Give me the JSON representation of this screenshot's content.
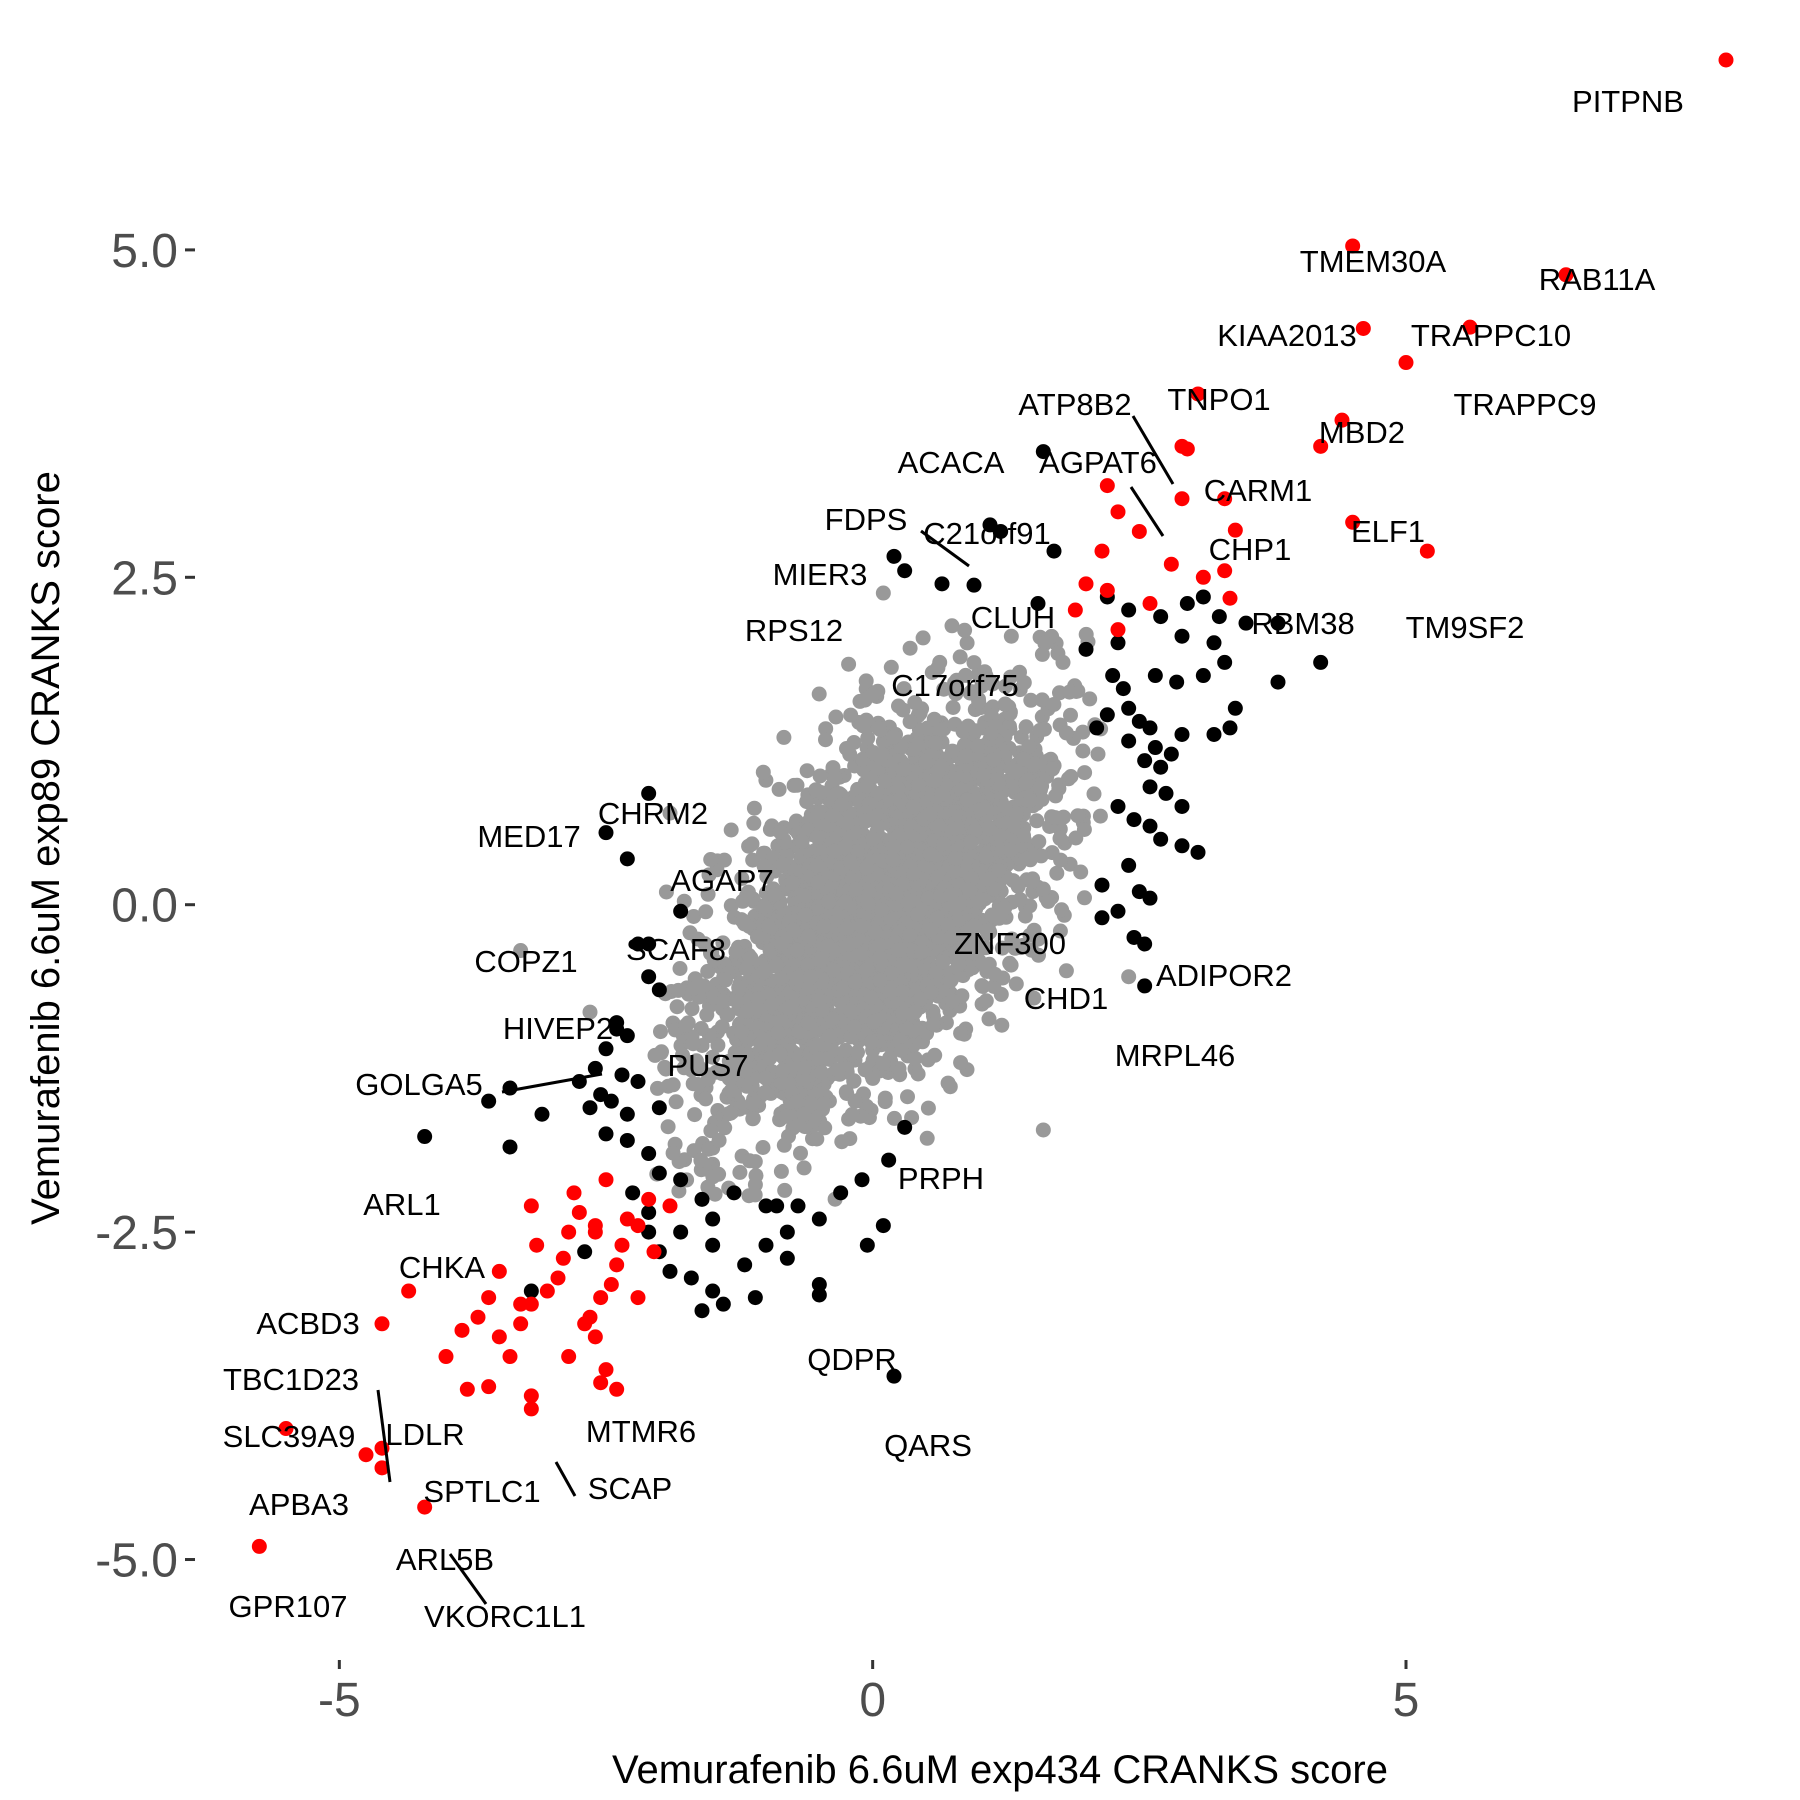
{
  "chart_data": {
    "type": "scatter",
    "title": "",
    "xlabel": "Vemurafenib 6.6uM exp434 CRANKS score",
    "ylabel": "Vemurafenib 6.6uM exp89 CRANKS score",
    "xlim": [
      -6.4,
      8.3
    ],
    "ylim": [
      -5.5,
      6.45
    ],
    "x_ticks": [
      -5,
      0,
      5
    ],
    "x_tick_labels": [
      "-5",
      "0",
      "5"
    ],
    "y_ticks": [
      -5,
      -2.5,
      0,
      2.5,
      5
    ],
    "y_tick_labels": [
      "-5.0",
      "-2.5",
      "0.0",
      "2.5",
      "5.0"
    ],
    "grid": false,
    "legend": "none",
    "colors": {
      "background": "#ffffff",
      "bulk": "#999999",
      "mid": "#000000",
      "highlight": "#ff0000",
      "tick_text": "#4d4d4d",
      "tick_mark": "#333333"
    },
    "bulk_cloud": {
      "center": [
        0.05,
        -0.05
      ],
      "sd_x": 0.82,
      "sd_y": 0.8,
      "rho": 0.58,
      "n": 3200
    },
    "labeled_points": [
      {
        "label": "PITPNB",
        "x": 8.0,
        "y": 6.45,
        "color": "red"
      },
      {
        "label": "TMEM30A",
        "x": 4.5,
        "y": 5.03,
        "color": "red"
      },
      {
        "label": "RAB11A",
        "x": 6.5,
        "y": 4.81,
        "color": "red"
      },
      {
        "label": "KIAA2013",
        "x": 4.6,
        "y": 4.4,
        "color": "red"
      },
      {
        "label": "TRAPPC10",
        "x": 5.6,
        "y": 4.41,
        "color": "red"
      },
      {
        "label": "TRAPPC9",
        "x": 5.0,
        "y": 4.14,
        "color": "red"
      },
      {
        "label": "TNPO1",
        "x": 3.05,
        "y": 3.9,
        "color": "red"
      },
      {
        "label": "MBD2",
        "x": 4.4,
        "y": 3.7,
        "color": "red"
      },
      {
        "label": "ATP8B2",
        "x": 2.95,
        "y": 3.48,
        "color": "red"
      },
      {
        "label": "CARM1",
        "x": 4.2,
        "y": 3.5,
        "color": "red"
      },
      {
        "label": "ACACA",
        "x": 1.6,
        "y": 3.46,
        "color": "black"
      },
      {
        "label": "AGPAT6",
        "x": 2.9,
        "y": 3.1,
        "color": "red"
      },
      {
        "label": "C21orf91",
        "x": 2.2,
        "y": 3.2,
        "color": "red"
      },
      {
        "label": "FDPS",
        "x": 1.1,
        "y": 2.9,
        "color": "black"
      },
      {
        "label": "CHP1",
        "x": 3.4,
        "y": 2.86,
        "color": "red"
      },
      {
        "label": "ELF1",
        "x": 4.5,
        "y": 2.92,
        "color": "red"
      },
      {
        "label": "MIER3",
        "x": 0.2,
        "y": 2.66,
        "color": "black"
      },
      {
        "label": "TM9SF2",
        "x": 5.2,
        "y": 2.7,
        "color": "red"
      },
      {
        "label": "CLUH",
        "x": 0.95,
        "y": 2.44,
        "color": "black"
      },
      {
        "label": "RBM38",
        "x": 3.35,
        "y": 2.34,
        "color": "red"
      },
      {
        "label": "RPS12",
        "x": 0.1,
        "y": 2.38,
        "color": "grey"
      },
      {
        "label": "C17orf75",
        "x": 1.3,
        "y": 2.05,
        "color": "grey"
      },
      {
        "label": "CHRM2",
        "x": -2.1,
        "y": 0.85,
        "color": "black"
      },
      {
        "label": "MED17",
        "x": -2.5,
        "y": 0.55,
        "color": "black"
      },
      {
        "label": "AGAP7",
        "x": -1.9,
        "y": 0.7,
        "color": "grey"
      },
      {
        "label": "ZNF300",
        "x": 2.15,
        "y": 0.15,
        "color": "black"
      },
      {
        "label": "COPZ1",
        "x": -3.3,
        "y": -0.35,
        "color": "grey"
      },
      {
        "label": "SCAF8",
        "x": -2.2,
        "y": -0.3,
        "color": "black"
      },
      {
        "label": "ADIPOR2",
        "x": 2.45,
        "y": -0.25,
        "color": "black"
      },
      {
        "label": "CHD1",
        "x": 2.4,
        "y": -0.55,
        "color": "grey"
      },
      {
        "label": "HIVEP2",
        "x": -2.65,
        "y": -0.82,
        "color": "grey"
      },
      {
        "label": "MRPL46",
        "x": 2.55,
        "y": -0.62,
        "color": "black"
      },
      {
        "label": "GOLGA5",
        "x": -2.4,
        "y": -0.95,
        "color": "black"
      },
      {
        "label": "PUS7",
        "x": -1.75,
        "y": -0.92,
        "color": "grey"
      },
      {
        "label": "PRPH",
        "x": 1.6,
        "y": -1.72,
        "color": "grey"
      },
      {
        "label": "ARL1",
        "x": -4.2,
        "y": -1.77,
        "color": "black"
      },
      {
        "label": "CHKA",
        "x": -2.6,
        "y": -2.5,
        "color": "red"
      },
      {
        "label": "ACBD3",
        "x": -4.35,
        "y": -2.95,
        "color": "red"
      },
      {
        "label": "QDPR",
        "x": -0.5,
        "y": -2.98,
        "color": "black"
      },
      {
        "label": "TBC1D23",
        "x": -4.6,
        "y": -3.2,
        "color": "red"
      },
      {
        "label": "MTMR6",
        "x": -3.2,
        "y": -3.75,
        "color": "red"
      },
      {
        "label": "LDLR",
        "x": -3.6,
        "y": -3.68,
        "color": "red"
      },
      {
        "label": "QARS",
        "x": 0.2,
        "y": -3.6,
        "color": "black"
      },
      {
        "label": "SLC39A9",
        "x": -5.5,
        "y": -4.0,
        "color": "red"
      },
      {
        "label": "APBA3",
        "x": -4.75,
        "y": -4.2,
        "color": "red"
      },
      {
        "label": "SPTLC1",
        "x": -4.6,
        "y": -4.3,
        "color": "red"
      },
      {
        "label": "SCAP",
        "x": -3.2,
        "y": -3.85,
        "color": "red"
      },
      {
        "label": "ARL5B",
        "x": -4.2,
        "y": -4.6,
        "color": "red"
      },
      {
        "label": "VKORC1L1",
        "x": -4.6,
        "y": -4.15,
        "color": "red"
      },
      {
        "label": "GPR107",
        "x": -5.75,
        "y": -4.9,
        "color": "red"
      }
    ],
    "black_points": [
      [
        1.2,
        2.85
      ],
      [
        1.7,
        2.7
      ],
      [
        0.65,
        2.45
      ],
      [
        0.3,
        2.55
      ],
      [
        1.55,
        2.3
      ],
      [
        2.2,
        2.35
      ],
      [
        2.4,
        2.25
      ],
      [
        2.7,
        2.2
      ],
      [
        2.95,
        2.3
      ],
      [
        3.1,
        2.35
      ],
      [
        3.25,
        2.2
      ],
      [
        3.5,
        2.15
      ],
      [
        3.8,
        2.15
      ],
      [
        2.3,
        2.0
      ],
      [
        2.9,
        2.05
      ],
      [
        3.2,
        2.0
      ],
      [
        4.2,
        1.85
      ],
      [
        3.8,
        1.7
      ],
      [
        2.0,
        1.95
      ],
      [
        2.25,
        1.75
      ],
      [
        2.35,
        1.65
      ],
      [
        2.65,
        1.75
      ],
      [
        2.85,
        1.7
      ],
      [
        3.1,
        1.75
      ],
      [
        3.3,
        1.85
      ],
      [
        2.1,
        1.35
      ],
      [
        2.2,
        1.45
      ],
      [
        2.4,
        1.5
      ],
      [
        2.5,
        1.4
      ],
      [
        2.6,
        1.35
      ],
      [
        2.4,
        1.25
      ],
      [
        2.65,
        1.2
      ],
      [
        2.9,
        1.3
      ],
      [
        3.2,
        1.3
      ],
      [
        3.4,
        1.5
      ],
      [
        3.35,
        1.35
      ],
      [
        2.55,
        1.1
      ],
      [
        2.7,
        1.05
      ],
      [
        2.8,
        1.15
      ],
      [
        2.6,
        0.9
      ],
      [
        2.75,
        0.85
      ],
      [
        2.3,
        0.75
      ],
      [
        2.45,
        0.65
      ],
      [
        2.6,
        0.6
      ],
      [
        2.9,
        0.75
      ],
      [
        2.7,
        0.5
      ],
      [
        2.9,
        0.45
      ],
      [
        3.05,
        0.4
      ],
      [
        2.4,
        0.3
      ],
      [
        2.5,
        0.1
      ],
      [
        2.6,
        0.05
      ],
      [
        2.3,
        -0.05
      ],
      [
        2.15,
        -0.1
      ],
      [
        2.55,
        -0.3
      ],
      [
        -2.1,
        -0.3
      ],
      [
        -1.8,
        -0.05
      ],
      [
        -2.3,
        0.35
      ],
      [
        -2.1,
        -0.55
      ],
      [
        -2.0,
        -0.65
      ],
      [
        -2.4,
        -0.9
      ],
      [
        -2.3,
        -1.0
      ],
      [
        -2.5,
        -1.1
      ],
      [
        -2.6,
        -1.25
      ],
      [
        -2.35,
        -1.3
      ],
      [
        -2.2,
        -1.35
      ],
      [
        -2.75,
        -1.35
      ],
      [
        -2.55,
        -1.45
      ],
      [
        -2.45,
        -1.5
      ],
      [
        -2.65,
        -1.55
      ],
      [
        -2.3,
        -1.6
      ],
      [
        -2.0,
        -1.55
      ],
      [
        -3.4,
        -1.4
      ],
      [
        -3.6,
        -1.5
      ],
      [
        -3.1,
        -1.6
      ],
      [
        -2.5,
        -1.75
      ],
      [
        -2.3,
        -1.8
      ],
      [
        -3.4,
        -1.85
      ],
      [
        -2.1,
        -1.9
      ],
      [
        -2.0,
        -2.05
      ],
      [
        -1.8,
        -2.1
      ],
      [
        -1.6,
        -2.25
      ],
      [
        -1.5,
        -2.4
      ],
      [
        -1.8,
        -2.5
      ],
      [
        -2.1,
        -2.5
      ],
      [
        -2.0,
        -2.65
      ],
      [
        -1.9,
        -2.8
      ],
      [
        -1.7,
        -2.85
      ],
      [
        -1.5,
        -2.95
      ],
      [
        -1.6,
        -3.1
      ],
      [
        -1.4,
        -3.05
      ],
      [
        -1.1,
        -3.0
      ],
      [
        -1.0,
        -2.6
      ],
      [
        -0.8,
        -2.5
      ],
      [
        -0.7,
        -2.3
      ],
      [
        -0.5,
        -2.4
      ],
      [
        -0.3,
        -2.2
      ],
      [
        -0.1,
        -2.1
      ],
      [
        0.15,
        -1.95
      ],
      [
        0.3,
        -1.7
      ],
      [
        -0.8,
        -2.7
      ],
      [
        -0.5,
        -2.9
      ],
      [
        -1.2,
        -2.75
      ],
      [
        -1.5,
        -2.6
      ],
      [
        -1.3,
        -2.2
      ],
      [
        -1.0,
        -2.3
      ],
      [
        -2.25,
        -2.2
      ],
      [
        -2.1,
        -2.35
      ],
      [
        -0.9,
        -2.3
      ],
      [
        -0.05,
        -2.6
      ],
      [
        0.1,
        -2.45
      ],
      [
        -3.2,
        -2.95
      ],
      [
        -2.7,
        -2.65
      ]
    ],
    "red_points": [
      [
        2.9,
        3.5
      ],
      [
        3.3,
        3.1
      ],
      [
        2.3,
        3.0
      ],
      [
        2.15,
        2.7
      ],
      [
        2.5,
        2.85
      ],
      [
        2.8,
        2.6
      ],
      [
        3.1,
        2.5
      ],
      [
        2.0,
        2.45
      ],
      [
        2.2,
        2.4
      ],
      [
        2.6,
        2.3
      ],
      [
        3.3,
        2.55
      ],
      [
        1.9,
        2.25
      ],
      [
        2.3,
        2.1
      ],
      [
        -1.9,
        -2.3
      ],
      [
        -2.1,
        -2.25
      ],
      [
        -2.2,
        -2.45
      ],
      [
        -2.35,
        -2.6
      ],
      [
        -2.4,
        -2.75
      ],
      [
        -2.45,
        -2.9
      ],
      [
        -2.55,
        -3.0
      ],
      [
        -2.6,
        -2.45
      ],
      [
        -2.75,
        -2.35
      ],
      [
        -2.85,
        -2.5
      ],
      [
        -2.9,
        -2.7
      ],
      [
        -2.95,
        -2.85
      ],
      [
        -3.05,
        -2.95
      ],
      [
        -3.2,
        -3.05
      ],
      [
        -3.3,
        -3.2
      ],
      [
        -3.5,
        -2.8
      ],
      [
        -3.6,
        -3.0
      ],
      [
        -3.7,
        -3.15
      ],
      [
        -3.85,
        -3.25
      ],
      [
        -3.5,
        -3.3
      ],
      [
        -3.3,
        -3.05
      ],
      [
        -2.7,
        -3.2
      ],
      [
        -2.6,
        -3.3
      ],
      [
        -2.5,
        -3.55
      ],
      [
        -2.55,
        -3.65
      ],
      [
        -2.4,
        -3.7
      ],
      [
        -2.2,
        -3.0
      ],
      [
        -2.05,
        -2.65
      ],
      [
        -2.3,
        -2.4
      ],
      [
        -2.5,
        -2.1
      ],
      [
        -2.8,
        -2.2
      ],
      [
        -3.2,
        -2.3
      ],
      [
        -4.0,
        -3.45
      ],
      [
        -3.8,
        -3.7
      ],
      [
        -3.4,
        -3.45
      ],
      [
        -3.15,
        -2.6
      ],
      [
        -2.65,
        -3.15
      ],
      [
        -2.85,
        -3.45
      ]
    ]
  }
}
